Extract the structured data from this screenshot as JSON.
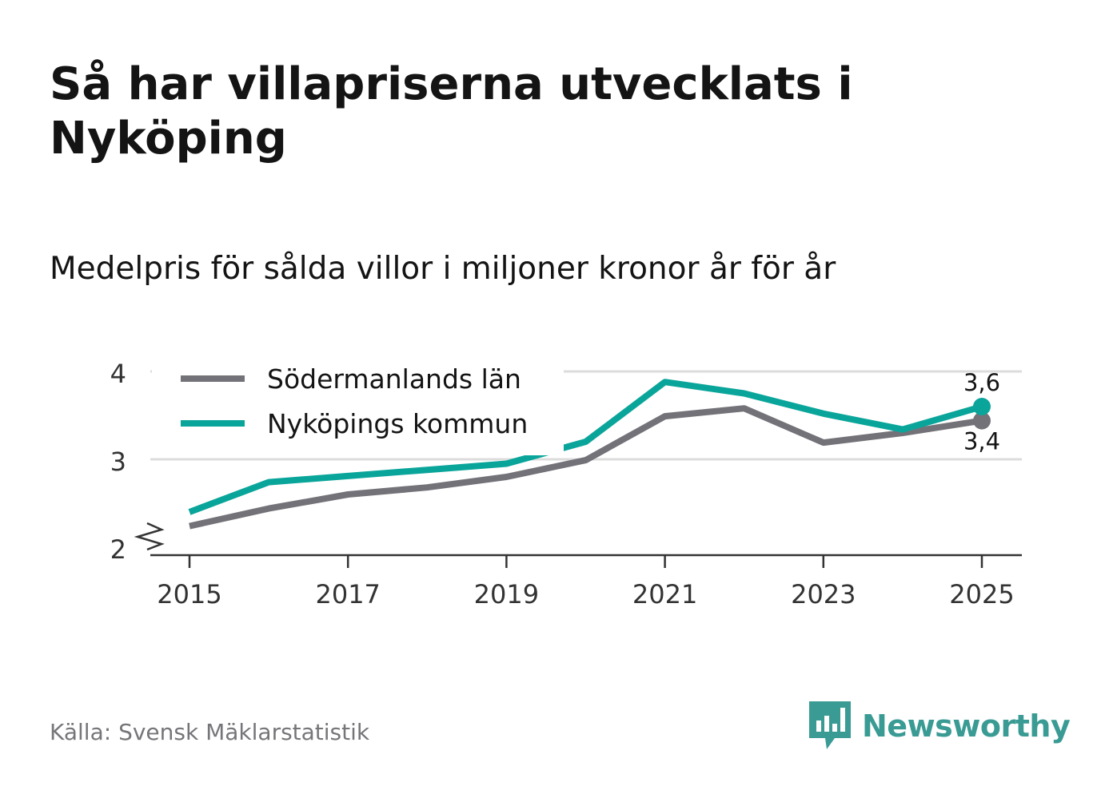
{
  "title": "Så har villapriserna utvecklats i Nyköping",
  "subtitle": "Medelpris för sålda villor i miljoner kronor år för år",
  "source": "Källa: Svensk Mäklarstatistik",
  "brand": {
    "name": "Newsworthy",
    "icon": "newsworthy-logo-icon",
    "color": "#3a9b94"
  },
  "colors": {
    "grid": "#dcdcdc",
    "axis": "#333333"
  },
  "chart_data": {
    "type": "line",
    "x": [
      2015,
      2016,
      2017,
      2018,
      2019,
      2020,
      2021,
      2022,
      2023,
      2024,
      2025
    ],
    "x_tick_labels": [
      "2015",
      "2017",
      "2019",
      "2021",
      "2023",
      "2025"
    ],
    "y_tick_labels": [
      "2",
      "3",
      "4"
    ],
    "ylim": [
      2,
      4
    ],
    "ybroken": true,
    "grid": true,
    "legend_position": "top-left",
    "series": [
      {
        "name": "Södermanlands län",
        "color": "#737278",
        "values": [
          2.24,
          2.44,
          2.6,
          2.68,
          2.8,
          2.99,
          3.49,
          3.58,
          3.19,
          3.3,
          3.44
        ],
        "end_label": "3,4",
        "end_label_position": "below"
      },
      {
        "name": "Nyköpings kommun",
        "color": "#0aa59a",
        "values": [
          2.4,
          2.74,
          2.81,
          2.88,
          2.95,
          3.2,
          3.88,
          3.75,
          3.52,
          3.34,
          3.6
        ],
        "end_label": "3,6",
        "end_label_position": "above"
      }
    ]
  }
}
